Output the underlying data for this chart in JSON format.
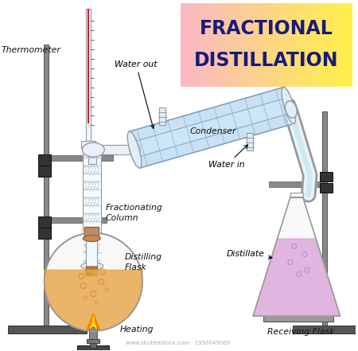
{
  "title_line1": "FRACTIONAL",
  "title_line2": "DISTILLATION",
  "title_text_color": "#1a1a7a",
  "bg_color": "#ffffff",
  "labels": {
    "thermometer": "Thermometer",
    "water_out": "Water out",
    "condenser": "Condenser",
    "fractionating_column": "Fractionating\nColumn",
    "water_in": "Water in",
    "distilling_flask": "Distilling\nFlask",
    "heating": "Heating",
    "distillate": "Distillate",
    "receiving_flask": "Receiving Flask"
  },
  "flask_liquid_color": "#e8a850",
  "receiving_flask_color": "#d8a0d8",
  "condenser_color": "#b8d8f0",
  "glass_color": "#f0f8ff",
  "glass_edge_color": "#999999",
  "stand_color": "#888888",
  "watermark": "www.shutterstock.com · 1950049009"
}
